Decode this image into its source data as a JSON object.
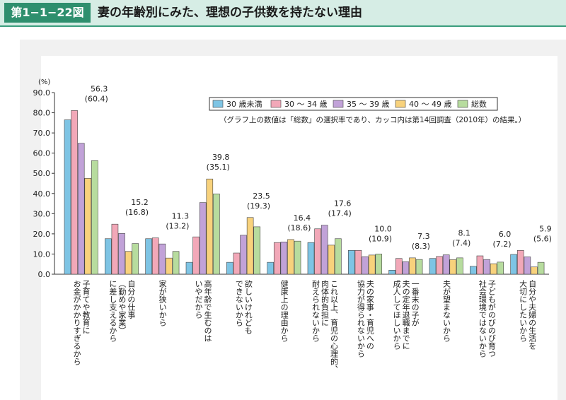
{
  "header": {
    "figure_label": "第1−1−22図",
    "title": "妻の年齢別にみた、理想の子供数を持たない理由"
  },
  "chart_data": {
    "type": "bar",
    "ylabel": "(%)",
    "ylim": [
      0,
      90
    ],
    "yticks": [
      "0.0",
      "10.0",
      "20.0",
      "30.0",
      "40.0",
      "50.0",
      "60.0",
      "70.0",
      "80.0",
      "90.0"
    ],
    "grid": false,
    "legend_position": "top-right",
    "note": "（グラフ上の数値は「総数」の選択率であり、カッコ内は第14回調査（2010年）の結果。）",
    "series": [
      {
        "name": "30 歳未満",
        "color": "#7ec4e4",
        "values": [
          76.5,
          17.6,
          17.6,
          5.9,
          5.9,
          5.9,
          15.7,
          11.8,
          2.0,
          7.8,
          3.9,
          9.8
        ]
      },
      {
        "name": "30 〜 34 歳",
        "color": "#f2a8b8",
        "values": [
          81.1,
          24.8,
          18.0,
          18.5,
          10.5,
          15.7,
          22.5,
          11.8,
          7.8,
          8.8,
          9.1,
          11.8
        ]
      },
      {
        "name": "35 〜 39 歳",
        "color": "#c1a2d8",
        "values": [
          64.9,
          20.2,
          15.0,
          35.5,
          19.3,
          16.0,
          24.3,
          8.7,
          6.2,
          9.6,
          7.3,
          8.6
        ]
      },
      {
        "name": "40 〜 49 歳",
        "color": "#f8d27c",
        "values": [
          47.5,
          11.3,
          8.0,
          47.2,
          28.1,
          17.2,
          14.4,
          9.5,
          8.1,
          7.2,
          5.2,
          3.6
        ]
      },
      {
        "name": "総数",
        "color": "#b7dc9e",
        "values": [
          56.3,
          15.2,
          11.3,
          39.8,
          23.5,
          16.4,
          17.6,
          10.0,
          7.3,
          8.1,
          6.0,
          5.9
        ]
      }
    ],
    "data_labels": [
      "56.3",
      "15.2",
      "11.3",
      "39.8",
      "23.5",
      "16.4",
      "17.6",
      "10.0",
      "7.3",
      "8.1",
      "6.0",
      "5.9"
    ],
    "previous_labels": [
      "(60.4)",
      "(16.8)",
      "(13.2)",
      "(35.1)",
      "(19.3)",
      "(18.6)",
      "(17.4)",
      "(10.9)",
      "(8.3)",
      "(7.4)",
      "(7.2)",
      "(5.6)"
    ],
    "categories": [
      [
        "子育てや教育に",
        "お金がかかりすぎるから"
      ],
      [
        "自分の仕事",
        "（勤めや家業）",
        "に差し支えるから"
      ],
      [
        "家が狭いから"
      ],
      [
        "高年齢で生むのは",
        "いやだから"
      ],
      [
        "欲しいけれども",
        "できないから"
      ],
      [
        "健康上の理由から"
      ],
      [
        "これ以上、育児の心理的、",
        "肉体的負担に",
        "耐えられないから"
      ],
      [
        "夫の家事・育児への",
        "協力が得られないから"
      ],
      [
        "一番末の子が",
        "夫の定年退職までに",
        "成人してほしいから"
      ],
      [
        "夫が望まないから"
      ],
      [
        "子どもがのびのび育つ",
        "社会環境ではないから"
      ],
      [
        "自分や夫婦の生活を",
        "大切にしたいから"
      ]
    ]
  }
}
